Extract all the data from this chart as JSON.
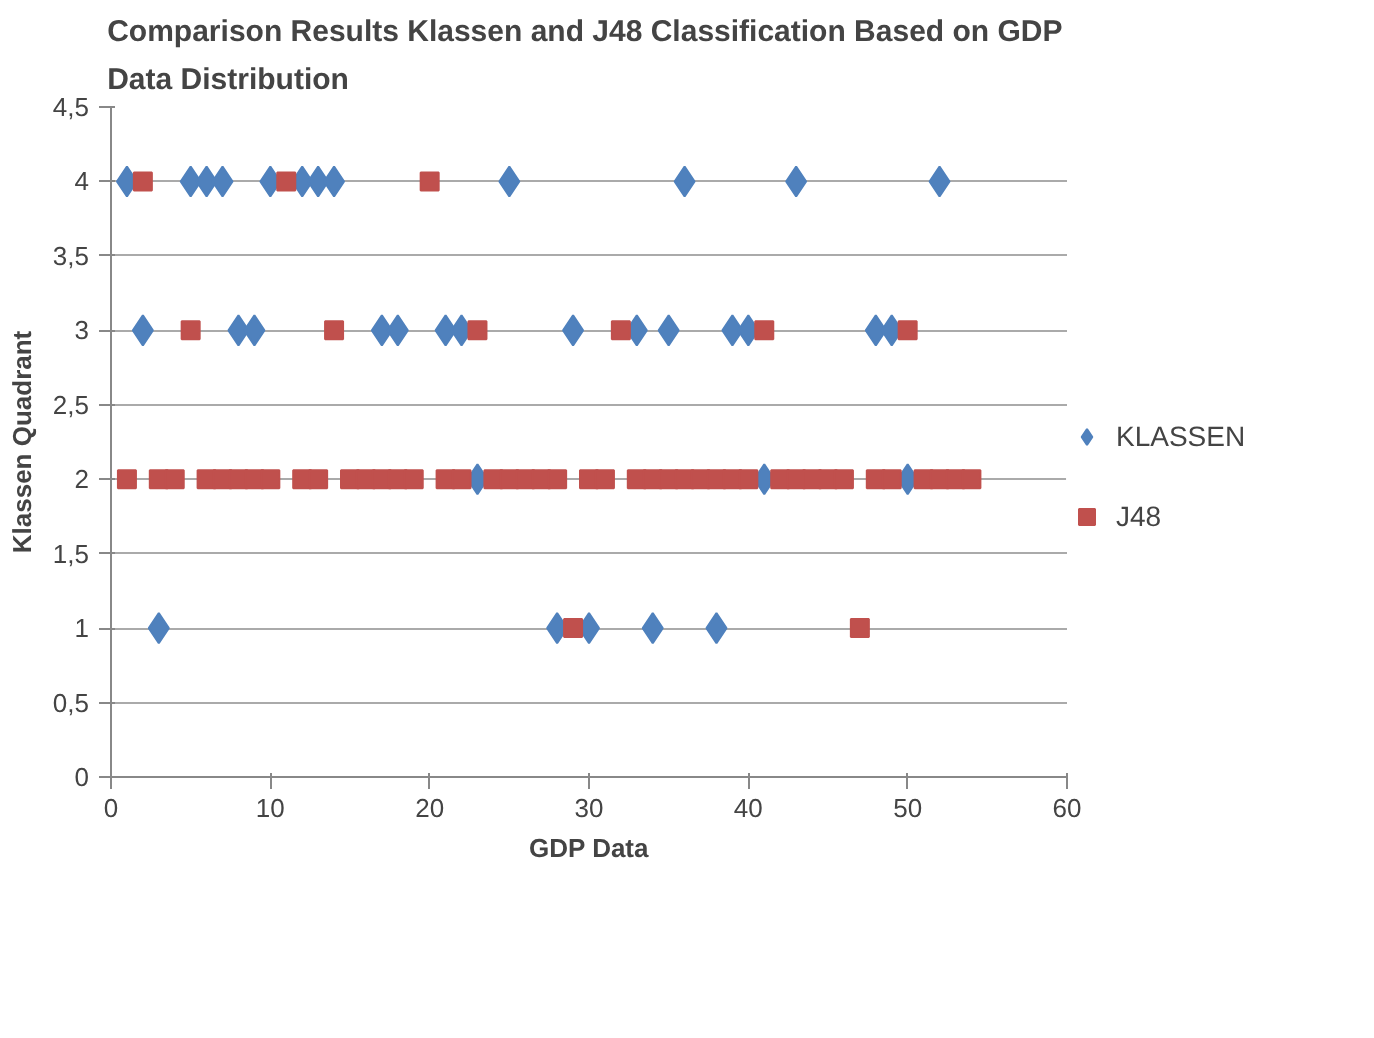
{
  "chart_data": {
    "type": "scatter",
    "title": "Comparison Results Klassen and J48 Classification  Based on GDP\nData Distribution",
    "xlabel": "GDP Data",
    "ylabel": "Klassen Quadrant",
    "xlim": [
      0,
      60
    ],
    "xticks": [
      0,
      10,
      20,
      30,
      40,
      50,
      60
    ],
    "ylim": [
      0,
      4.5
    ],
    "yticks": [
      0,
      {
        "value": 0.5,
        "label": "0,5"
      },
      1,
      {
        "value": 1.5,
        "label": "1,5"
      },
      2,
      {
        "value": 2.5,
        "label": "2,5"
      },
      3,
      {
        "value": 3.5,
        "label": "3,5"
      },
      4,
      {
        "value": 4.5,
        "label": "4,5"
      }
    ],
    "grid": "y",
    "legend": "right",
    "series": [
      {
        "name": "KLASSEN",
        "color": "#4f81bd",
        "marker": "diamond",
        "x": [
          1,
          5,
          6,
          7,
          10,
          12,
          13,
          14,
          25,
          36,
          43,
          52,
          2,
          8,
          9,
          17,
          18,
          21,
          22,
          29,
          33,
          35,
          39,
          40,
          48,
          49,
          3,
          28,
          30,
          34,
          38,
          23,
          41,
          50
        ],
        "values": [
          4,
          4,
          4,
          4,
          4,
          4,
          4,
          4,
          4,
          4,
          4,
          4,
          3,
          3,
          3,
          3,
          3,
          3,
          3,
          3,
          3,
          3,
          3,
          3,
          3,
          3,
          1,
          1,
          1,
          1,
          1,
          2,
          2,
          2
        ]
      },
      {
        "name": "J48",
        "color": "#c0504d",
        "marker": "square",
        "x": [
          1,
          2,
          3,
          4,
          5,
          6,
          7,
          8,
          9,
          10,
          11,
          12,
          13,
          14,
          15,
          16,
          17,
          18,
          19,
          20,
          21,
          22,
          23,
          24,
          25,
          26,
          27,
          28,
          29,
          30,
          31,
          32,
          33,
          34,
          35,
          36,
          37,
          38,
          39,
          40,
          41,
          42,
          43,
          44,
          45,
          46,
          47,
          48,
          49,
          50,
          51,
          52,
          53,
          54
        ],
        "values": [
          2,
          4,
          2,
          2,
          3,
          2,
          2,
          2,
          2,
          2,
          4,
          2,
          2,
          3,
          2,
          2,
          2,
          2,
          2,
          4,
          2,
          2,
          3,
          2,
          2,
          2,
          2,
          2,
          1,
          2,
          2,
          3,
          2,
          2,
          2,
          2,
          2,
          2,
          2,
          2,
          3,
          2,
          2,
          2,
          2,
          2,
          1,
          2,
          2,
          3,
          2,
          2,
          2,
          2
        ]
      }
    ]
  }
}
